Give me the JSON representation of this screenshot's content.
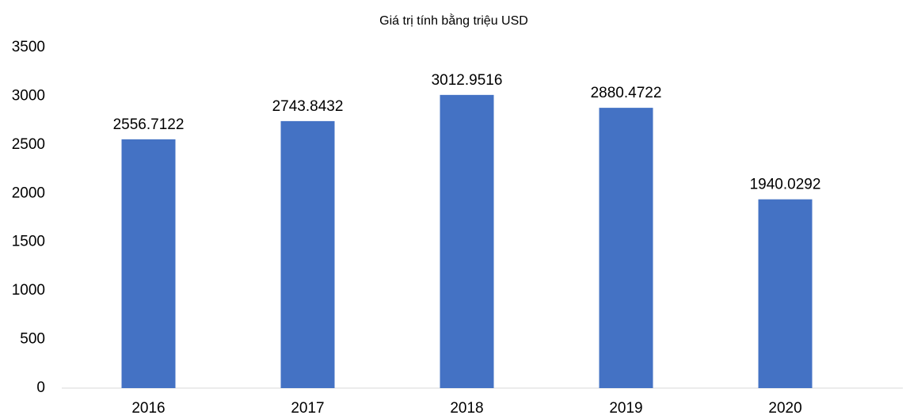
{
  "chart_data": {
    "type": "bar",
    "title": "Giá trị tính bằng triệu USD",
    "categories": [
      "2016",
      "2017",
      "2018",
      "2019",
      "2020"
    ],
    "values": [
      2556.7122,
      2743.8432,
      3012.9516,
      2880.4722,
      1940.0292
    ],
    "color": "#4472c4",
    "ylim": [
      0,
      3500
    ],
    "yticks": [
      0,
      500,
      1000,
      1500,
      2000,
      2500,
      3000,
      3500
    ],
    "grid": false
  }
}
